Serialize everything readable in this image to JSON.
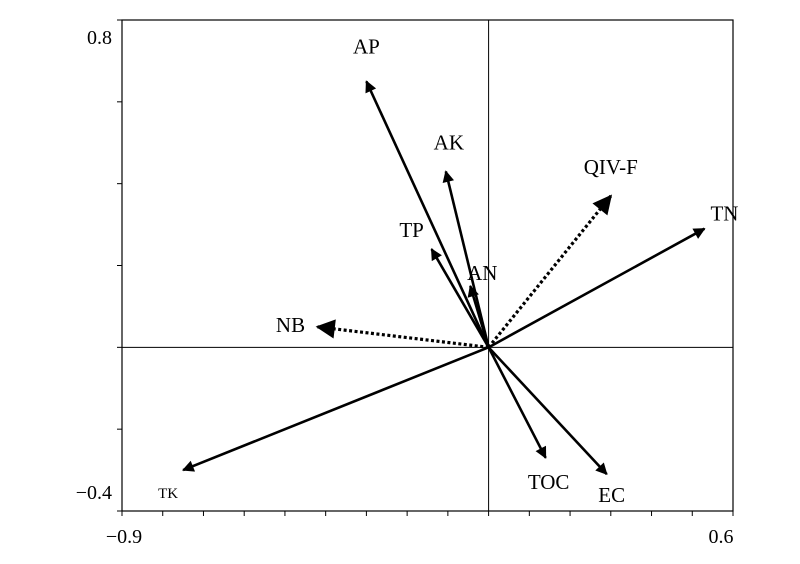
{
  "chart_data": {
    "type": "biplot",
    "title": "",
    "xlabel": "",
    "ylabel": "",
    "xlim": [
      -0.9,
      0.6
    ],
    "ylim": [
      -0.4,
      0.8
    ],
    "x_ticks": [
      -0.9,
      -0.8,
      -0.7,
      -0.6,
      -0.5,
      -0.4,
      -0.3,
      -0.2,
      -0.1,
      0.0,
      0.1,
      0.2,
      0.3,
      0.4,
      0.5,
      0.6
    ],
    "y_ticks": [
      -0.4,
      -0.2,
      0.0,
      0.2,
      0.4,
      0.6,
      0.8
    ],
    "x_tick_labels": [
      "-0.9",
      "0.6"
    ],
    "y_tick_labels": [
      "0.8",
      "-0.4"
    ],
    "grid": false,
    "zero_lines": true,
    "arrows": [
      {
        "label": "AP",
        "x": -0.3,
        "y": 0.65,
        "style": "solid"
      },
      {
        "label": "AK",
        "x": -0.105,
        "y": 0.43,
        "style": "solid"
      },
      {
        "label": "TP",
        "x": -0.14,
        "y": 0.24,
        "style": "solid"
      },
      {
        "label": "AN",
        "x": -0.045,
        "y": 0.15,
        "style": "solid"
      },
      {
        "label": "TN",
        "x": 0.53,
        "y": 0.29,
        "style": "solid"
      },
      {
        "label": "TK",
        "x": -0.75,
        "y": -0.3,
        "style": "solid"
      },
      {
        "label": "TOC",
        "x": 0.14,
        "y": -0.27,
        "style": "solid"
      },
      {
        "label": "EC",
        "x": 0.29,
        "y": -0.31,
        "style": "solid"
      },
      {
        "label": "QIV-F",
        "x": 0.3,
        "y": 0.37,
        "style": "dotted"
      },
      {
        "label": "NB",
        "x": -0.42,
        "y": 0.05,
        "style": "dotted"
      }
    ]
  }
}
